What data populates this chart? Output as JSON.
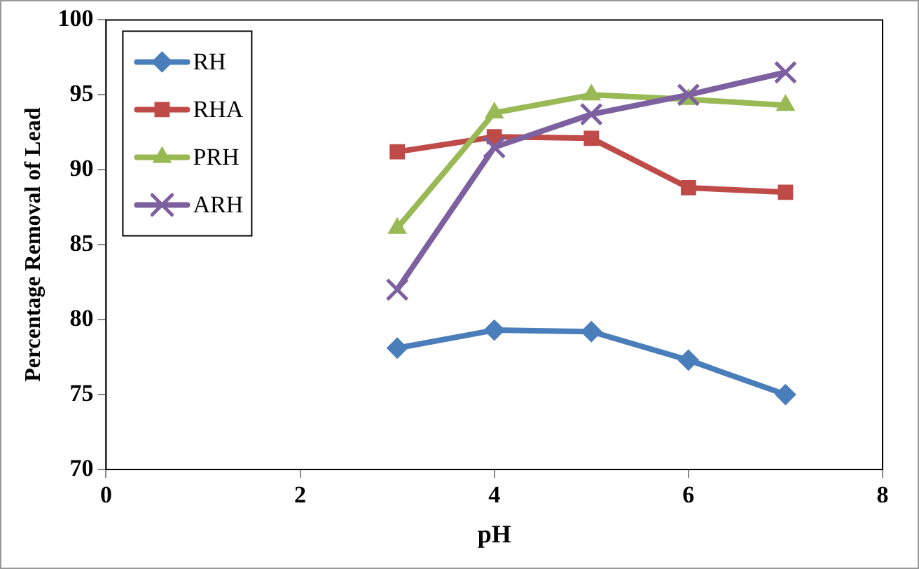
{
  "chart_data": {
    "type": "line",
    "xlabel": "pH",
    "ylabel": "Percentage Removal of Lead",
    "xlim": [
      0,
      8
    ],
    "xticks": [
      0,
      2,
      4,
      6,
      8
    ],
    "ylim": [
      70,
      100
    ],
    "yticks": [
      70,
      75,
      80,
      85,
      90,
      95,
      100
    ],
    "grid": false,
    "legend": "top left",
    "series": [
      {
        "name": "RH",
        "color": "#4a7ebb",
        "marker": "diamond",
        "x": [
          3,
          4,
          5,
          6,
          7
        ],
        "values": [
          78.1,
          79.3,
          79.2,
          77.3,
          75.0
        ]
      },
      {
        "name": "RHA",
        "color": "#be4b48",
        "marker": "square",
        "x": [
          3,
          4,
          5,
          6,
          7
        ],
        "values": [
          91.2,
          92.2,
          92.1,
          88.8,
          88.5
        ]
      },
      {
        "name": "PRH",
        "color": "#98b954",
        "marker": "triangle",
        "x": [
          3,
          4,
          5,
          6,
          7
        ],
        "values": [
          86.1,
          93.8,
          95.0,
          94.7,
          94.3
        ]
      },
      {
        "name": "ARH",
        "color": "#7d60a0",
        "marker": "cross",
        "x": [
          3,
          4,
          5,
          6,
          7
        ],
        "values": [
          82.0,
          91.5,
          93.7,
          95.0,
          96.5
        ]
      }
    ]
  }
}
